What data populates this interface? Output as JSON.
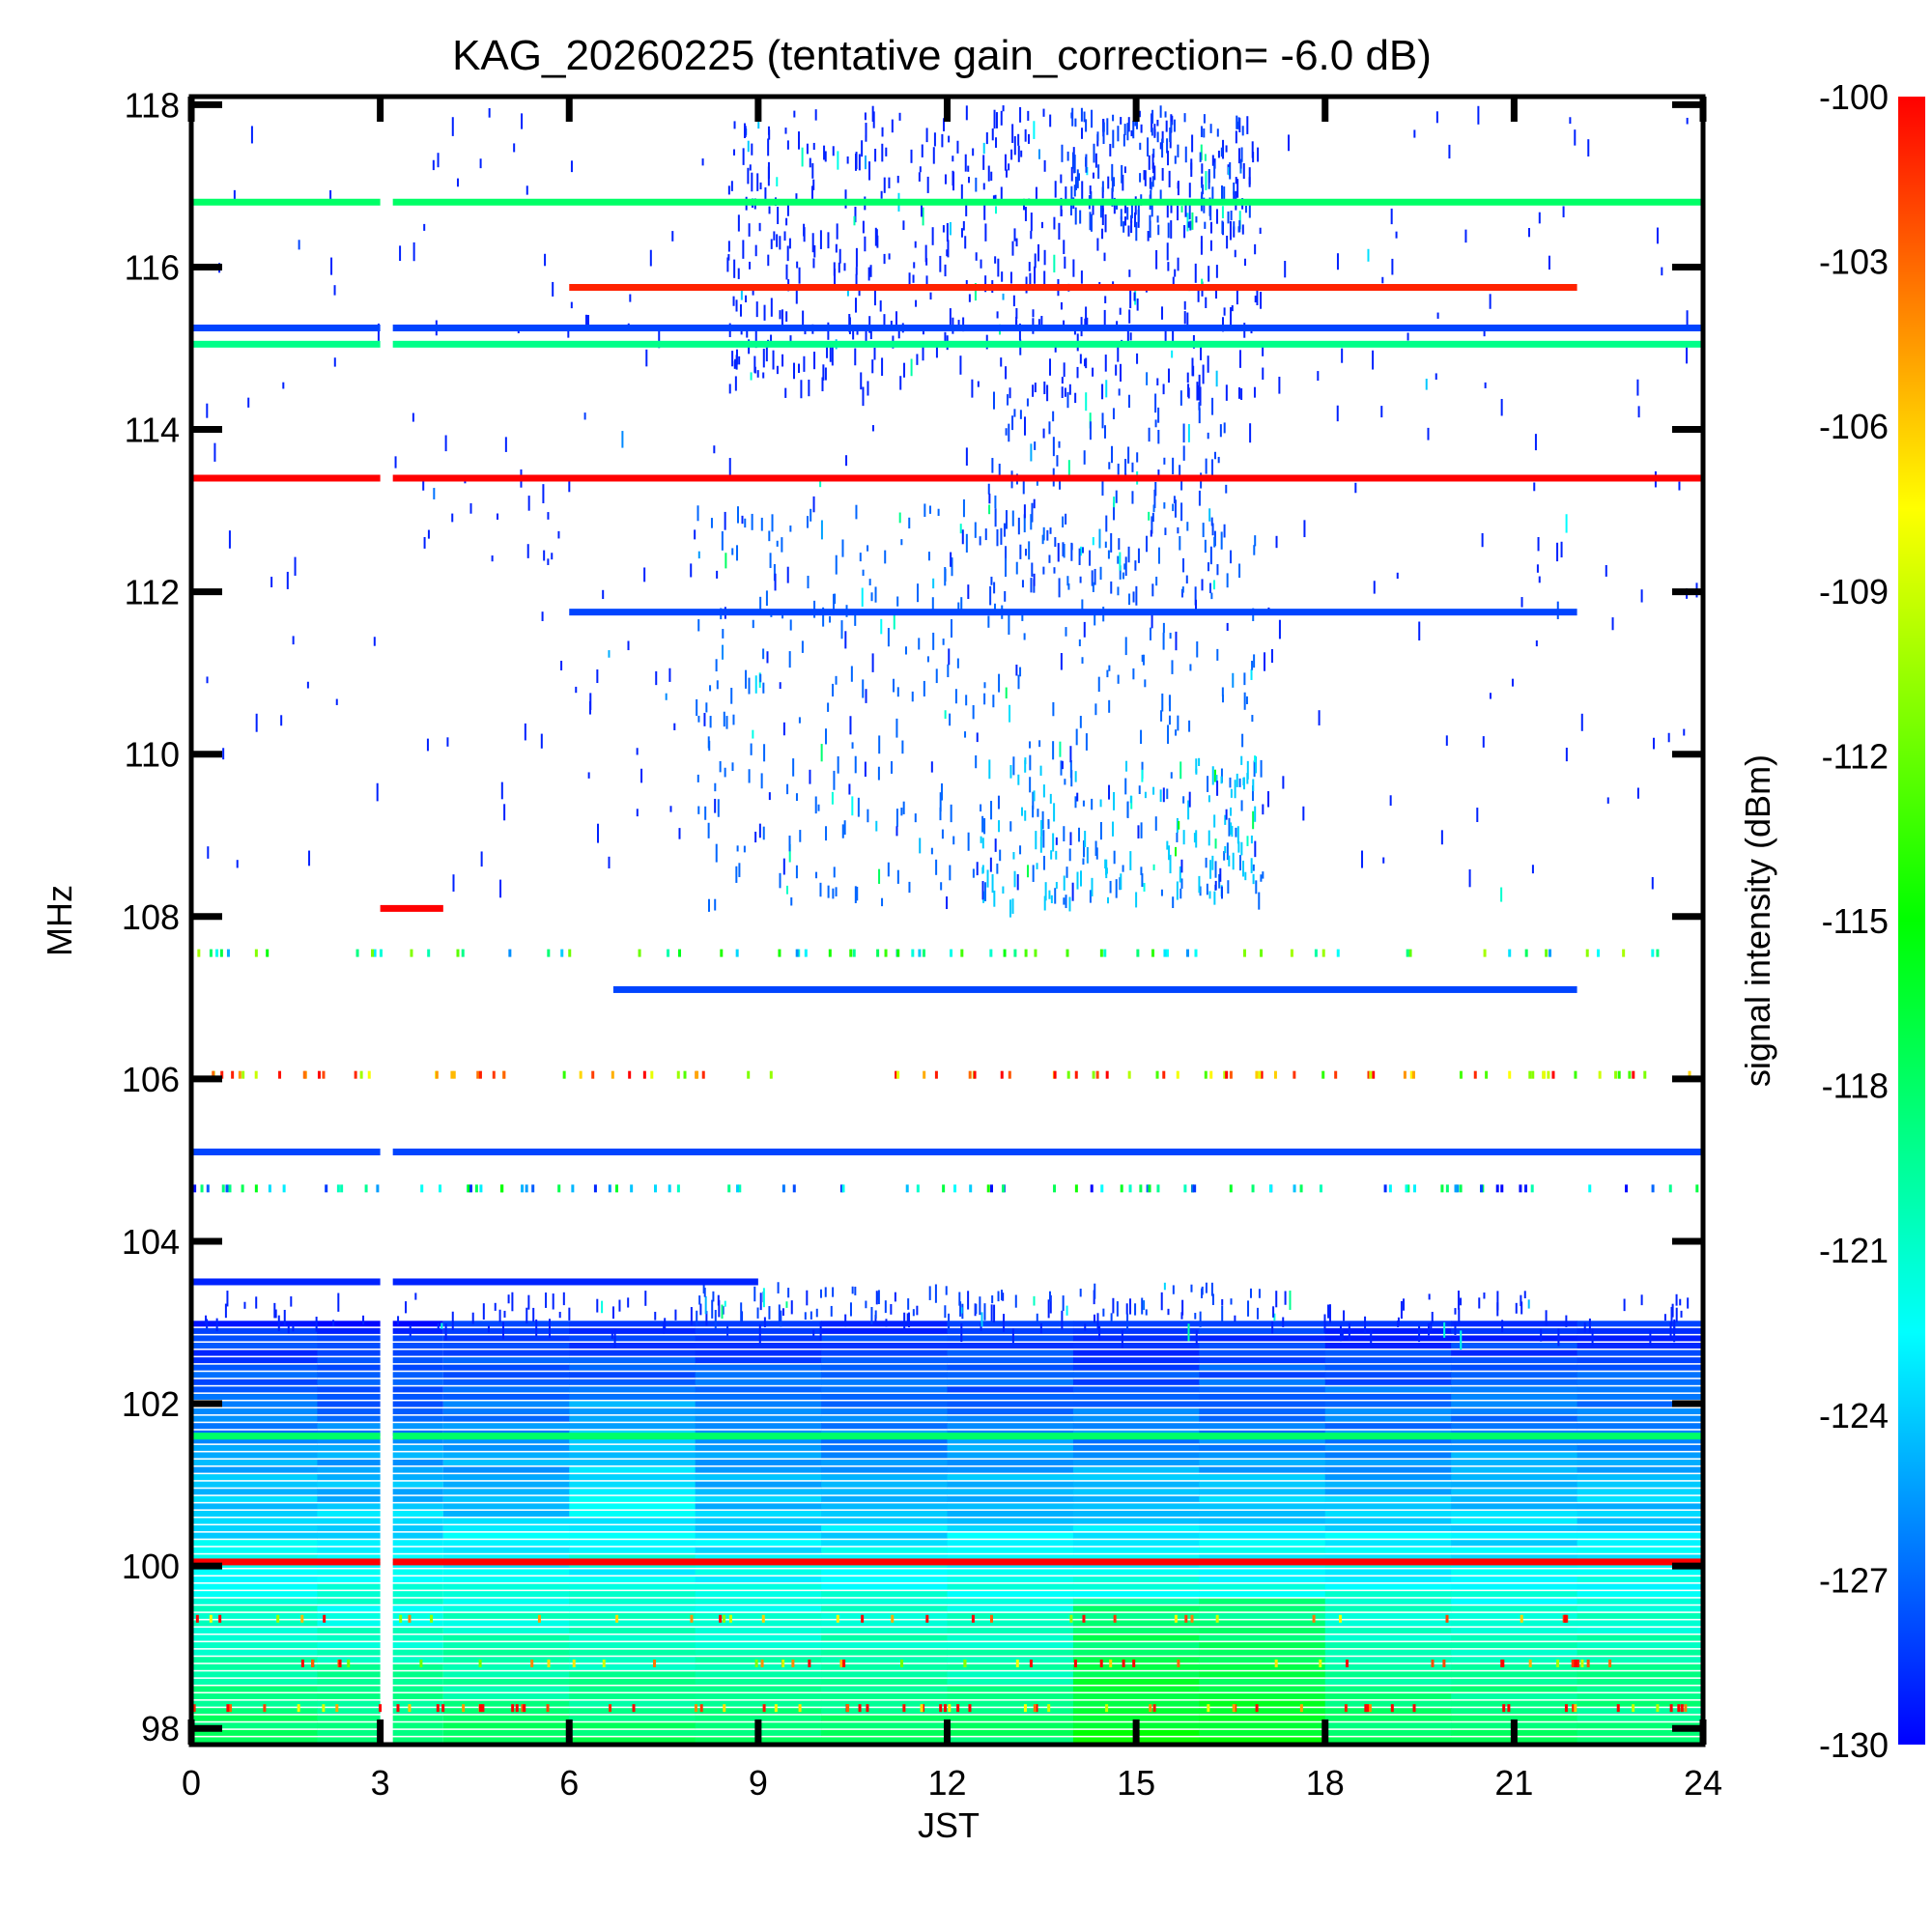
{
  "chart_data": {
    "type": "heatmap",
    "title": "KAG_20260225 (tentative gain_correction= -6.0 dB)",
    "xlabel": "JST",
    "ylabel": "MHz",
    "colorbar_label": "signal intensity (dBm)",
    "xlim": [
      0,
      24
    ],
    "ylim": [
      97.8,
      118.1
    ],
    "x_ticks": [
      0,
      3,
      6,
      9,
      12,
      15,
      18,
      21,
      24
    ],
    "y_ticks": [
      98,
      100,
      102,
      104,
      106,
      108,
      110,
      112,
      114,
      116,
      118
    ],
    "colorbar_range": [
      -130,
      -100
    ],
    "colorbar_ticks": [
      -100,
      -103,
      -106,
      -109,
      -112,
      -115,
      -118,
      -121,
      -124,
      -127,
      -130
    ],
    "colormap": [
      "#0000ff",
      "#0080ff",
      "#00ffff",
      "#00ff80",
      "#00ff00",
      "#80ff00",
      "#ffff00",
      "#ff8000",
      "#ff0000"
    ],
    "data_gap_jst": [
      3.0,
      3.2
    ],
    "band_floor": {
      "from_mhz": 97.8,
      "to_mhz": 103.0,
      "value_bottom_dbm": -118,
      "value_top_dbm": -129
    },
    "carriers": [
      {
        "freq": 116.8,
        "x": [
          0,
          24
        ],
        "dbm": -118
      },
      {
        "freq": 115.75,
        "x": [
          6,
          22
        ],
        "dbm": -101
      },
      {
        "freq": 115.25,
        "x": [
          0,
          24
        ],
        "dbm": -128
      },
      {
        "freq": 115.05,
        "x": [
          0,
          24
        ],
        "dbm": -119
      },
      {
        "freq": 113.4,
        "x": [
          0,
          24
        ],
        "dbm": -100
      },
      {
        "freq": 111.75,
        "x": [
          6,
          22
        ],
        "dbm": -128
      },
      {
        "freq": 108.1,
        "x": [
          3,
          4
        ],
        "dbm": -100
      },
      {
        "freq": 107.1,
        "x": [
          6.7,
          22
        ],
        "dbm": -128
      },
      {
        "freq": 105.1,
        "x": [
          0,
          24
        ],
        "dbm": -128
      },
      {
        "freq": 103.5,
        "x": [
          0,
          9
        ],
        "dbm": -129
      },
      {
        "freq": 101.6,
        "x": [
          0,
          24
        ],
        "dbm": -118
      },
      {
        "freq": 100.05,
        "x": [
          0,
          24
        ],
        "dbm": -100
      }
    ],
    "activity_bursts": [
      {
        "x": [
          8.5,
          17
        ],
        "y": [
          114.5,
          118
        ],
        "density": 0.6,
        "dbm": -129
      },
      {
        "x": [
          13.8,
          16.8
        ],
        "y": [
          116.5,
          118
        ],
        "density": 0.95,
        "dbm": -128
      },
      {
        "x": [
          12.5,
          16.5
        ],
        "y": [
          112,
          114.5
        ],
        "density": 0.5,
        "dbm": -128
      },
      {
        "x": [
          8,
          17
        ],
        "y": [
          108.2,
          113.2
        ],
        "density": 0.3,
        "dbm": -127
      },
      {
        "x": [
          12.5,
          17
        ],
        "y": [
          108.2,
          110
        ],
        "density": 0.5,
        "dbm": -124
      },
      {
        "x": [
          0,
          24
        ],
        "y": [
          108.2,
          118
        ],
        "density": 0.05,
        "dbm": -129
      },
      {
        "x": [
          0,
          24
        ],
        "y": [
          102.9,
          103.4
        ],
        "density": 0.5,
        "dbm": -129
      },
      {
        "x": [
          8,
          17
        ],
        "y": [
          103.1,
          103.5
        ],
        "density": 0.8,
        "dbm": -128
      }
    ],
    "speckle_rows": [
      {
        "freq": 107.55,
        "density": 0.3,
        "dbm": -118
      },
      {
        "freq": 106.05,
        "density": 0.4,
        "dbm": -106
      },
      {
        "freq": 104.65,
        "density": 0.4,
        "dbm": -122
      },
      {
        "freq": 98.25,
        "density": 0.3,
        "dbm": -102
      },
      {
        "freq": 98.8,
        "density": 0.2,
        "dbm": -104
      },
      {
        "freq": 99.35,
        "density": 0.15,
        "dbm": -103
      }
    ]
  }
}
